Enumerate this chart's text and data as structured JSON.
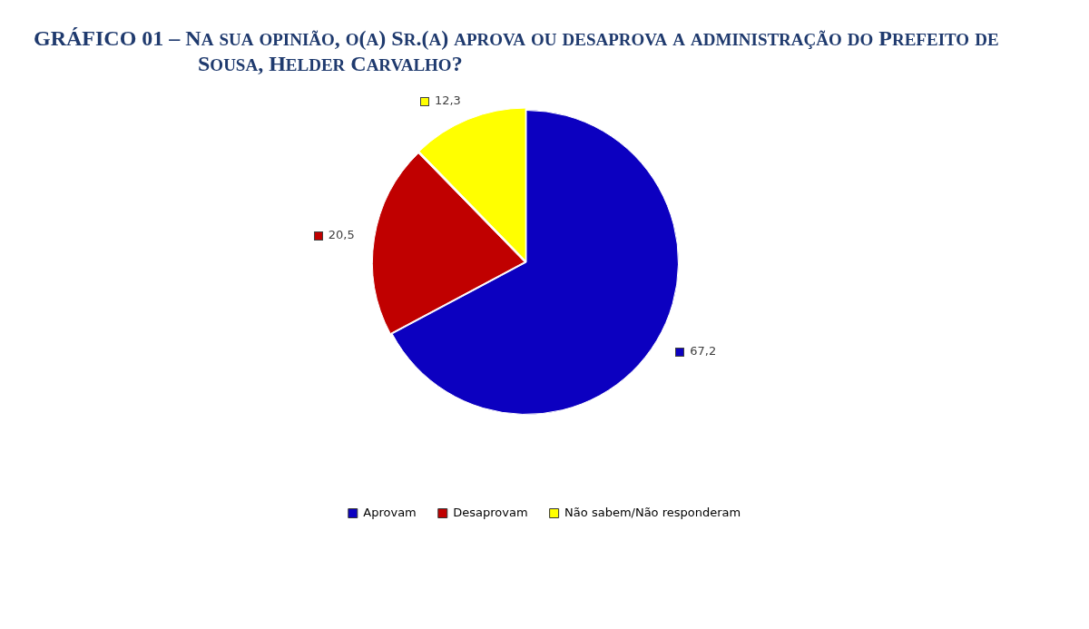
{
  "chart_data": {
    "type": "pie",
    "title": "GRÁFICO 01 – Na sua opinião, o(a) Sr.(a) aprova ou desaprova a administração do Prefeito de Sousa, Helder Carvalho?",
    "categories": [
      "Aprovam",
      "Desaprovam",
      "Não sabem/Não responderam"
    ],
    "values": [
      67.2,
      20.5,
      12.3
    ],
    "colors": [
      "#0c00c0",
      "#c00000",
      "#ffff00"
    ],
    "value_labels": [
      "67,2",
      "20,5",
      "12,3"
    ],
    "legend": "bottom"
  }
}
